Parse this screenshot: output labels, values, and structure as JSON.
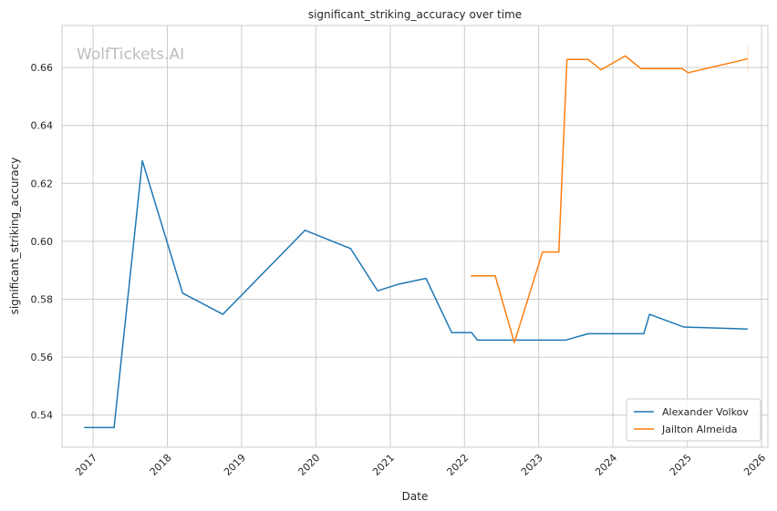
{
  "watermark": "WolfTickets.AI",
  "chart_data": {
    "type": "line",
    "title": "significant_striking_accuracy over time",
    "xlabel": "Date",
    "ylabel": "significant_striking_accuracy",
    "x_ticks": [
      "2017",
      "2018",
      "2019",
      "2020",
      "2021",
      "2022",
      "2023",
      "2024",
      "2025",
      "2026"
    ],
    "y_ticks": [
      "0.54",
      "0.56",
      "0.58",
      "0.60",
      "0.62",
      "0.64",
      "0.66"
    ],
    "xlim": [
      "2016-08-01",
      "2026-02-01"
    ],
    "ylim": [
      0.5289,
      0.6745
    ],
    "grid": true,
    "legend_position": "lower-right",
    "colors": {
      "Alexander Volkov": "#1f77b4",
      "Jailton Almeida": "#ff7f0e"
    },
    "series": [
      {
        "name": "Alexander Volkov",
        "points": [
          [
            "2016-11-18",
            0.5357
          ],
          [
            "2017-04-14",
            0.5357
          ],
          [
            "2017-08-31",
            0.6278
          ],
          [
            "2018-03-17",
            0.5821
          ],
          [
            "2018-10-01",
            0.5748
          ],
          [
            "2019-11-09",
            0.6038
          ],
          [
            "2020-06-20",
            0.5975
          ],
          [
            "2020-10-31",
            0.5829
          ],
          [
            "2021-02-06",
            0.5851
          ],
          [
            "2021-06-26",
            0.5872
          ],
          [
            "2021-10-30",
            0.5685
          ],
          [
            "2022-02-05",
            0.5685
          ],
          [
            "2022-03-05",
            0.5659
          ],
          [
            "2023-05-15",
            0.5659
          ],
          [
            "2023-09-01",
            0.5681
          ],
          [
            "2024-06-01",
            0.5681
          ],
          [
            "2024-06-29",
            0.5748
          ],
          [
            "2024-12-15",
            0.5704
          ],
          [
            "2025-10-25",
            0.5697
          ]
        ]
      },
      {
        "name": "Jailton Almeida",
        "points": [
          [
            "2022-02-01",
            0.5881
          ],
          [
            "2022-06-01",
            0.5881
          ],
          [
            "2022-09-03",
            0.565
          ],
          [
            "2023-01-20",
            0.5963
          ],
          [
            "2023-04-10",
            0.5963
          ],
          [
            "2023-05-20",
            0.6628
          ],
          [
            "2023-09-01",
            0.6628
          ],
          [
            "2023-11-04",
            0.6592
          ],
          [
            "2024-03-02",
            0.664
          ],
          [
            "2024-05-18",
            0.6596
          ],
          [
            "2024-12-07",
            0.6596
          ],
          [
            "2025-01-05",
            0.6582
          ],
          [
            "2025-10-25",
            0.663
          ]
        ]
      }
    ]
  }
}
